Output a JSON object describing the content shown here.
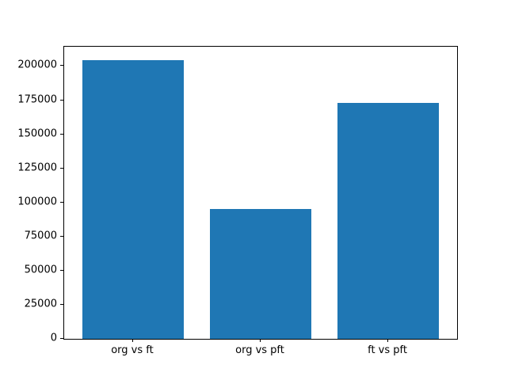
{
  "chart_data": {
    "type": "bar",
    "categories": [
      "org vs ft",
      "org vs pft",
      "ft vs pft"
    ],
    "values": [
      204500,
      95000,
      173000
    ],
    "title": "",
    "xlabel": "",
    "ylabel": "",
    "ylim": [
      0,
      214200
    ],
    "yticks": [
      0,
      25000,
      50000,
      75000,
      100000,
      125000,
      150000,
      175000,
      200000
    ],
    "bar_color": "#1f77b4",
    "axis_color": "#000000",
    "text_color": "#000000",
    "background": "#ffffff",
    "grid": false,
    "legend": null
  }
}
